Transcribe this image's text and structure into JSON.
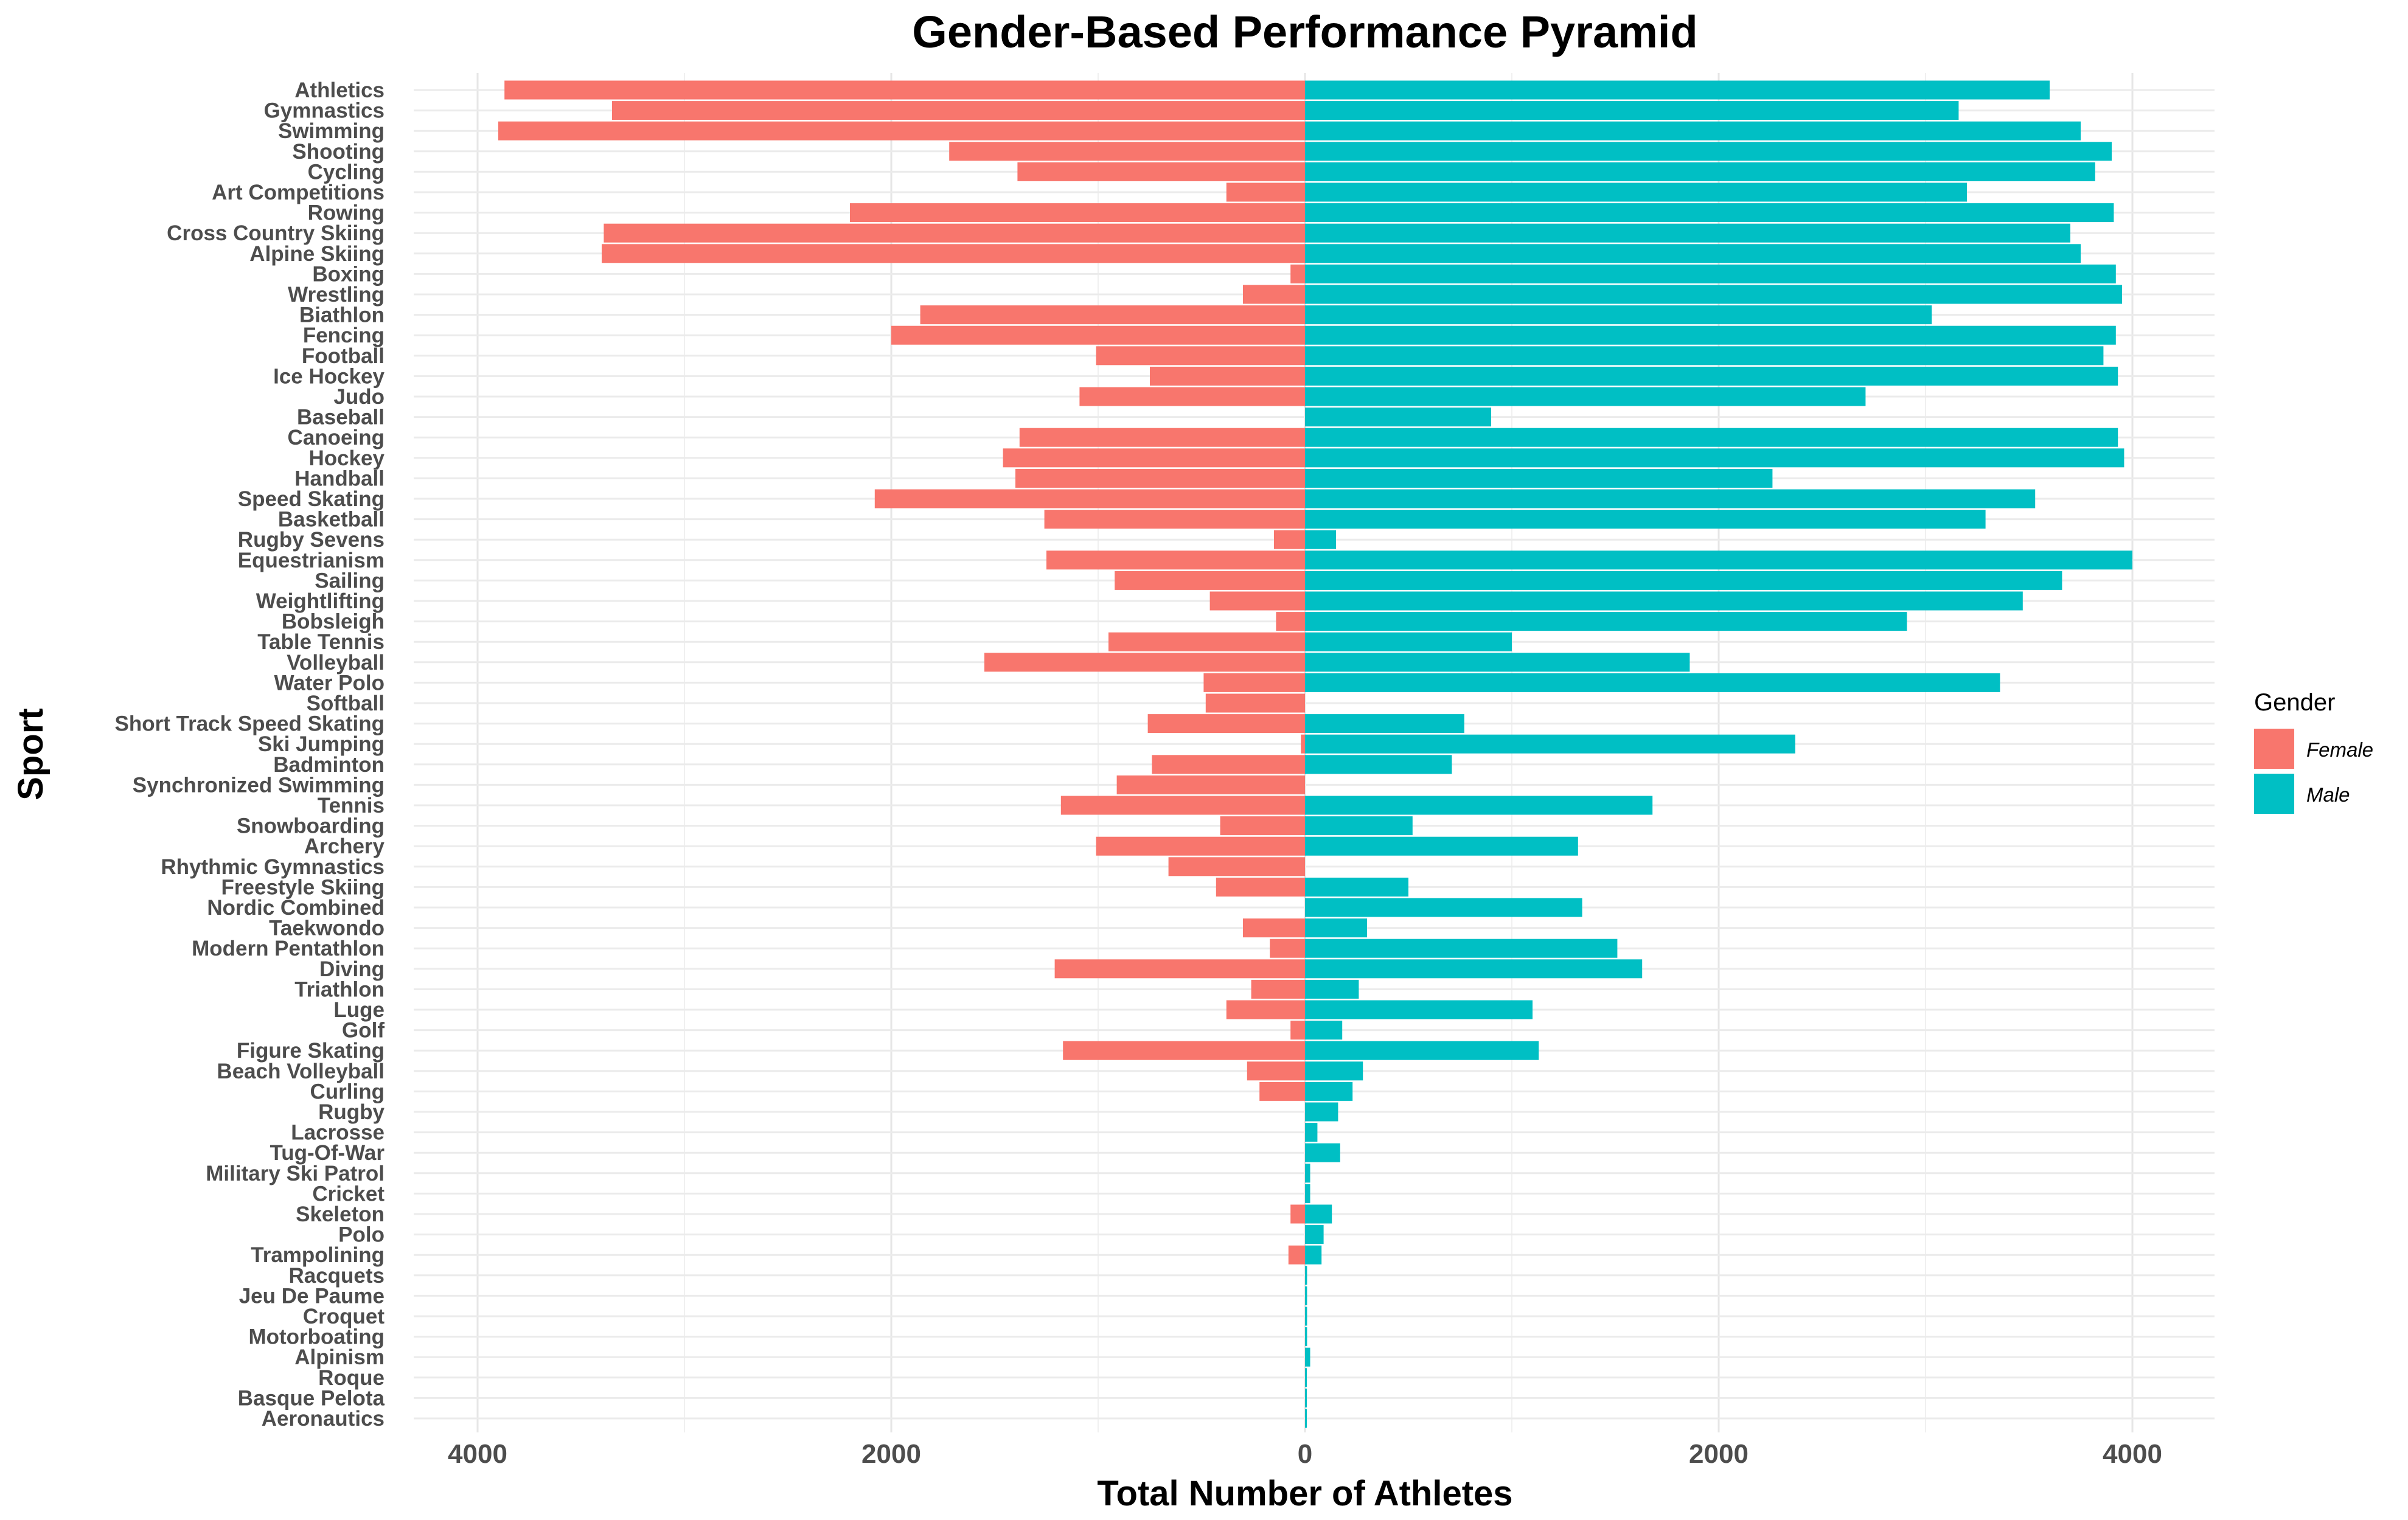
{
  "chart_data": {
    "type": "bar",
    "orientation": "horizontal",
    "layout": "diverging",
    "title": "Gender-Based Performance Pyramid",
    "xlabel": "Total Number of Athletes",
    "ylabel": "Sport",
    "xlim": [
      -4400,
      4400
    ],
    "xticks": [
      -4000,
      -2000,
      0,
      2000,
      4000
    ],
    "xtick_labels": [
      "4000",
      "2000",
      "0",
      "2000",
      "4000"
    ],
    "grid": true,
    "legend": {
      "title": "Gender",
      "position": "right",
      "entries": [
        {
          "label": "Female",
          "color": "#F8766D"
        },
        {
          "label": "Male",
          "color": "#00BFC4"
        }
      ]
    },
    "categories": [
      "Athletics",
      "Gymnastics",
      "Swimming",
      "Shooting",
      "Cycling",
      "Art Competitions",
      "Rowing",
      "Cross Country Skiing",
      "Alpine Skiing",
      "Boxing",
      "Wrestling",
      "Biathlon",
      "Fencing",
      "Football",
      "Ice Hockey",
      "Judo",
      "Baseball",
      "Canoeing",
      "Hockey",
      "Handball",
      "Speed Skating",
      "Basketball",
      "Rugby Sevens",
      "Equestrianism",
      "Sailing",
      "Weightlifting",
      "Bobsleigh",
      "Table Tennis",
      "Volleyball",
      "Water Polo",
      "Softball",
      "Short Track Speed Skating",
      "Ski Jumping",
      "Badminton",
      "Synchronized Swimming",
      "Tennis",
      "Snowboarding",
      "Archery",
      "Rhythmic Gymnastics",
      "Freestyle Skiing",
      "Nordic Combined",
      "Taekwondo",
      "Modern Pentathlon",
      "Diving",
      "Triathlon",
      "Luge",
      "Golf",
      "Figure Skating",
      "Beach Volleyball",
      "Curling",
      "Rugby",
      "Lacrosse",
      "Tug-Of-War",
      "Military Ski Patrol",
      "Cricket",
      "Skeleton",
      "Polo",
      "Trampolining",
      "Racquets",
      "Jeu De Paume",
      "Croquet",
      "Motorboating",
      "Alpinism",
      "Roque",
      "Basque Pelota",
      "Aeronautics"
    ],
    "series": [
      {
        "name": "Female",
        "color": "#F8766D",
        "values": [
          3870,
          3350,
          3900,
          1720,
          1390,
          380,
          2200,
          3390,
          3400,
          70,
          300,
          1860,
          2000,
          1010,
          750,
          1090,
          0,
          1380,
          1460,
          1400,
          2080,
          1260,
          150,
          1250,
          920,
          460,
          140,
          950,
          1550,
          490,
          480,
          760,
          20,
          740,
          910,
          1180,
          410,
          1010,
          660,
          430,
          0,
          300,
          170,
          1210,
          260,
          380,
          70,
          1170,
          280,
          220,
          0,
          0,
          0,
          0,
          0,
          70,
          0,
          80,
          0,
          0,
          0,
          0,
          0,
          0,
          0,
          0
        ]
      },
      {
        "name": "Male",
        "color": "#00BFC4",
        "values": [
          3600,
          3160,
          3750,
          3900,
          3820,
          3200,
          3910,
          3700,
          3750,
          3920,
          3950,
          3030,
          3920,
          3860,
          3930,
          2710,
          900,
          3930,
          3960,
          2260,
          3530,
          3290,
          150,
          4000,
          3660,
          3470,
          2910,
          1000,
          1860,
          3360,
          0,
          770,
          2370,
          710,
          0,
          1680,
          520,
          1320,
          0,
          500,
          1340,
          300,
          1510,
          1630,
          260,
          1100,
          180,
          1130,
          280,
          230,
          160,
          60,
          170,
          25,
          25,
          130,
          90,
          80,
          10,
          10,
          10,
          10,
          25,
          5,
          5,
          5
        ]
      }
    ]
  }
}
